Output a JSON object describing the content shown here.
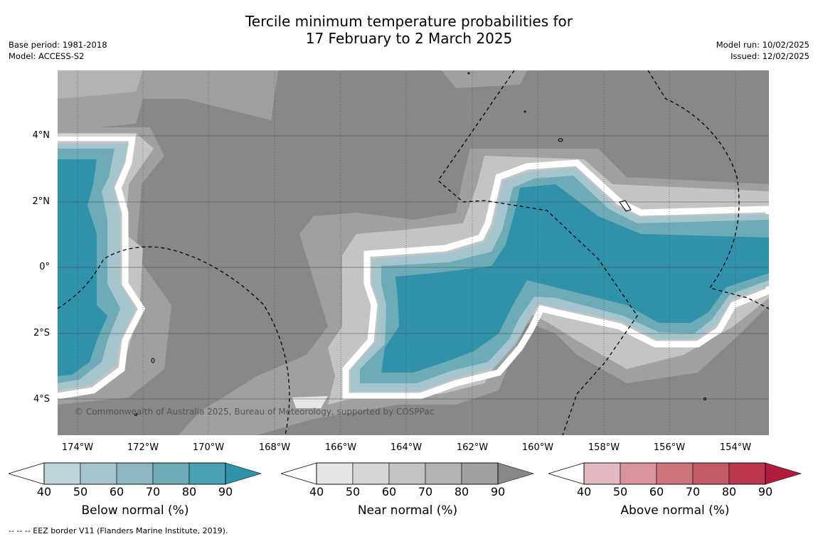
{
  "title_line1": "Tercile minimum temperature probabilities for",
  "title_line2": "17 February to 2 March 2025",
  "base_period": "Base period: 1981-2018",
  "model": "Model: ACCESS-S2",
  "model_run": "Model run: 10/02/2025",
  "issued": "Issued: 12/02/2025",
  "copyright": "© Commonwealth of Australia 2025, Bureau of Meteorology, supported by COSPPac",
  "lat_labels": [
    "4°N",
    "2°N",
    "0°",
    "2°S",
    "4°S"
  ],
  "lon_labels": [
    "174°W",
    "172°W",
    "170°W",
    "168°W",
    "166°W",
    "164°W",
    "162°W",
    "160°W",
    "158°W",
    "156°W",
    "154°W"
  ],
  "legends": [
    {
      "label": "Below normal (%)",
      "ticks": [
        "40",
        "50",
        "60",
        "70",
        "80",
        "90"
      ],
      "colors": [
        "#bcd3da",
        "#a5c5cc",
        "#8cb7c3",
        "#6eabb8",
        "#4aa1b2",
        "#2f92a8"
      ]
    },
    {
      "label": "Near normal (%)",
      "ticks": [
        "40",
        "50",
        "60",
        "70",
        "80",
        "90"
      ],
      "colors": [
        "#e6e6e6",
        "#d6d6d6",
        "#c4c4c4",
        "#b3b3b3",
        "#a0a0a0",
        "#888888"
      ]
    },
    {
      "label": "Above normal (%)",
      "ticks": [
        "40",
        "50",
        "60",
        "70",
        "80",
        "90"
      ],
      "colors": [
        "#e4b8c0",
        "#d8939d",
        "#cd747f",
        "#c55a68",
        "#bd3650",
        "#b11c3a"
      ]
    }
  ],
  "footer": "--  --  -- EEZ border V11 (Flanders Marine Institute, 2019)."
}
